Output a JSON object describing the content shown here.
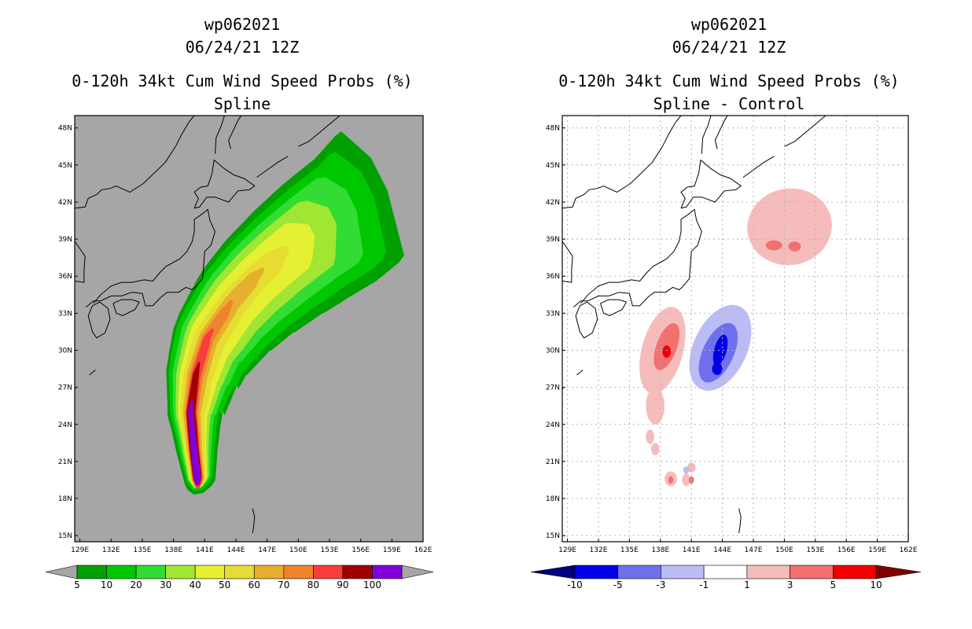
{
  "chart_data": [
    {
      "type": "heatmap",
      "id": "left",
      "title": {
        "storm": "wp062021",
        "datetime": "06/24/21 12Z",
        "product": "0-120h 34kt Cum Wind Speed Probs (%)",
        "subtitle": "Spline"
      },
      "xlabel": "",
      "ylabel": "",
      "xlim": [
        128.5,
        162
      ],
      "ylim": [
        14.5,
        49
      ],
      "grid": false,
      "x_ticks": [
        129,
        132,
        135,
        138,
        141,
        144,
        147,
        150,
        153,
        156,
        159,
        162
      ],
      "x_tick_labels": [
        "129E",
        "132E",
        "135E",
        "138E",
        "141E",
        "144E",
        "147E",
        "150E",
        "153E",
        "156E",
        "159E",
        "162E"
      ],
      "y_ticks": [
        15,
        18,
        21,
        24,
        27,
        30,
        33,
        36,
        39,
        42,
        45,
        48
      ],
      "y_tick_labels": [
        "15N",
        "18N",
        "21N",
        "24N",
        "27N",
        "30N",
        "33N",
        "36N",
        "39N",
        "42N",
        "45N",
        "48N"
      ],
      "background": "#a6a6a6",
      "colorbar": {
        "labels": [
          "5",
          "10",
          "20",
          "30",
          "40",
          "50",
          "60",
          "70",
          "80",
          "90",
          "100"
        ],
        "colors": [
          "#00a000",
          "#00c800",
          "#32dc32",
          "#a0e632",
          "#e6f032",
          "#e6dc32",
          "#e6af2d",
          "#f0822d",
          "#fa3c3c",
          "#a00000",
          "#8200dc"
        ],
        "end_low": "#a6a6a6",
        "end_high": "#a6a6a6"
      },
      "levels": [
        {
          "value": 5,
          "color": "#00a000",
          "half_width": [
            [
              5.0,
              1.2
            ],
            [
              3.0,
              2.2
            ],
            [
              0.8,
              3.5
            ],
            [
              -0.5,
              4.4
            ],
            [
              -1.3,
              5.2
            ],
            [
              -1.8,
              5.8
            ]
          ]
        },
        {
          "value": 10,
          "color": "#00c800",
          "half_width": [
            [
              4.2,
              1.0
            ],
            [
              2.3,
              1.9
            ],
            [
              0.2,
              3.2
            ],
            [
              -1.2,
              3.9
            ],
            [
              -2.0,
              4.4
            ],
            [
              -2.5,
              4.8
            ]
          ]
        },
        {
          "value": 20,
          "color": "#32dc32",
          "half_width": [
            [
              3.4,
              0.9
            ],
            [
              1.6,
              1.6
            ],
            [
              -0.4,
              2.6
            ],
            [
              -1.9,
              3.2
            ],
            [
              -2.6,
              3.6
            ],
            [
              -3.5,
              3.8
            ]
          ]
        },
        {
          "value": 30,
          "color": "#a0e632",
          "half_width": [
            [
              2.8,
              0.8
            ],
            [
              1.1,
              1.3
            ],
            [
              -0.9,
              2.1
            ],
            [
              -2.4,
              2.6
            ],
            [
              -3.2,
              2.8
            ],
            [
              -4.5,
              2.9
            ]
          ]
        },
        {
          "value": 40,
          "color": "#e6f032",
          "half_width": [
            [
              2.3,
              0.7
            ],
            [
              0.6,
              1.05
            ],
            [
              -1.4,
              1.65
            ],
            [
              -2.9,
              2.0
            ],
            [
              -3.6,
              2.0
            ],
            [
              -5.0,
              2.0
            ]
          ]
        },
        {
          "value": 50,
          "color": "#e6dc32",
          "half_width": [
            [
              1.9,
              0.6
            ],
            [
              0.2,
              0.9
            ],
            [
              -1.9,
              1.25
            ],
            [
              -3.5,
              1.4
            ],
            [
              -4.4,
              1.2
            ],
            [
              -5.6,
              0.8
            ]
          ]
        },
        {
          "value": 60,
          "color": "#e6af2d",
          "half_width": [
            [
              1.5,
              0.5
            ],
            [
              -0.3,
              0.7
            ],
            [
              -2.5,
              0.9
            ],
            [
              -4.3,
              0.8
            ],
            [
              -5.2,
              0.5
            ]
          ]
        },
        {
          "value": 70,
          "color": "#f0822d",
          "half_width": [
            [
              1.2,
              0.45
            ],
            [
              -0.6,
              0.55
            ],
            [
              -3.0,
              0.6
            ],
            [
              -5.0,
              0.35
            ]
          ]
        },
        {
          "value": 80,
          "color": "#fa3c3c",
          "half_width": [
            [
              0.9,
              0.4
            ],
            [
              -1.0,
              0.45
            ],
            [
              -4.0,
              0.3
            ]
          ]
        },
        {
          "value": 90,
          "color": "#a00000",
          "half_width": [
            [
              0.7,
              0.35
            ],
            [
              -1.8,
              0.4
            ],
            [
              -4.8,
              0.2
            ]
          ]
        },
        {
          "value": 100,
          "color": "#8200dc",
          "half_width": [
            [
              0.5,
              0.3
            ],
            [
              -2.5,
              0.25
            ],
            [
              -5.6,
              0.15
            ]
          ]
        }
      ]
    },
    {
      "type": "heatmap",
      "id": "right",
      "title": {
        "storm": "wp062021",
        "datetime": "06/24/21 12Z",
        "product": "0-120h 34kt Cum Wind Speed Probs (%)",
        "subtitle": "Spline - Control"
      },
      "xlabel": "",
      "ylabel": "",
      "xlim": [
        128.5,
        162
      ],
      "ylim": [
        14.5,
        49
      ],
      "grid": true,
      "x_ticks": [
        129,
        132,
        135,
        138,
        141,
        144,
        147,
        150,
        153,
        156,
        159,
        162
      ],
      "x_tick_labels": [
        "129E",
        "132E",
        "135E",
        "138E",
        "141E",
        "144E",
        "147E",
        "150E",
        "153E",
        "156E",
        "159E",
        "162E"
      ],
      "y_ticks": [
        15,
        18,
        21,
        24,
        27,
        30,
        33,
        36,
        39,
        42,
        45,
        48
      ],
      "y_tick_labels": [
        "15N",
        "18N",
        "21N",
        "24N",
        "27N",
        "30N",
        "33N",
        "36N",
        "39N",
        "42N",
        "45N",
        "48N"
      ],
      "background": "#ffffff",
      "colorbar": {
        "labels": [
          "-10",
          "-5",
          "-3",
          "-1",
          "1",
          "3",
          "5",
          "10"
        ],
        "colors": [
          "#0000e6",
          "#7070ee",
          "#bcbcf5",
          "#ffffff",
          "#f6bcbc",
          "#f27070",
          "#f00000"
        ],
        "end_low": "#000080",
        "end_high": "#800000"
      },
      "anomalies": [
        {
          "lon": 150.5,
          "lat": 40.0,
          "rx": 4.1,
          "ry": 3.1,
          "rot": -10,
          "value": 2,
          "color": "#f6bcbc"
        },
        {
          "lon": 138.2,
          "lat": 30.0,
          "rx": 2.0,
          "ry": 3.6,
          "rot": 15,
          "value": 2,
          "color": "#f6bcbc"
        },
        {
          "lon": 137.5,
          "lat": 25.5,
          "rx": 0.9,
          "ry": 1.5,
          "rot": 0,
          "value": 2,
          "color": "#f6bcbc"
        },
        {
          "lon": 137.0,
          "lat": 23.0,
          "rx": 0.4,
          "ry": 0.6,
          "rot": 0,
          "value": 2,
          "color": "#f6bcbc"
        },
        {
          "lon": 139.0,
          "lat": 19.6,
          "rx": 0.6,
          "ry": 0.6,
          "rot": 0,
          "value": 2,
          "color": "#f6bcbc"
        },
        {
          "lon": 140.5,
          "lat": 19.5,
          "rx": 0.4,
          "ry": 0.5,
          "rot": 0,
          "value": 2,
          "color": "#f6bcbc"
        },
        {
          "lon": 141.0,
          "lat": 20.5,
          "rx": 0.4,
          "ry": 0.4,
          "rot": 0,
          "value": 2,
          "color": "#f6bcbc"
        },
        {
          "lon": 137.5,
          "lat": 22.0,
          "rx": 0.4,
          "ry": 0.5,
          "rot": 0,
          "value": 2,
          "color": "#f6bcbc"
        },
        {
          "lon": 149.0,
          "lat": 38.5,
          "rx": 0.8,
          "ry": 0.4,
          "rot": 0,
          "value": 4,
          "color": "#f27070"
        },
        {
          "lon": 151.0,
          "lat": 38.4,
          "rx": 0.6,
          "ry": 0.4,
          "rot": 0,
          "value": 4,
          "color": "#f27070"
        },
        {
          "lon": 138.6,
          "lat": 30.3,
          "rx": 1.0,
          "ry": 2.0,
          "rot": 20,
          "value": 4,
          "color": "#f27070"
        },
        {
          "lon": 138.6,
          "lat": 29.9,
          "rx": 0.4,
          "ry": 0.5,
          "rot": 0,
          "value": 7,
          "color": "#f00000"
        },
        {
          "lon": 139.0,
          "lat": 19.5,
          "rx": 0.25,
          "ry": 0.3,
          "rot": 0,
          "value": 4,
          "color": "#f27070"
        },
        {
          "lon": 141.0,
          "lat": 19.5,
          "rx": 0.25,
          "ry": 0.3,
          "rot": 0,
          "value": 4,
          "color": "#f27070"
        },
        {
          "lon": 143.8,
          "lat": 30.2,
          "rx": 2.6,
          "ry": 3.7,
          "rot": 25,
          "value": -2,
          "color": "#bcbcf5"
        },
        {
          "lon": 143.6,
          "lat": 29.8,
          "rx": 1.5,
          "ry": 2.6,
          "rot": 25,
          "value": -4,
          "color": "#7070ee"
        },
        {
          "lon": 143.8,
          "lat": 30.0,
          "rx": 0.6,
          "ry": 1.3,
          "rot": 15,
          "value": -7,
          "color": "#0000e6"
        },
        {
          "lon": 143.5,
          "lat": 28.5,
          "rx": 0.5,
          "ry": 0.5,
          "rot": 0,
          "value": -7,
          "color": "#0000e6"
        },
        {
          "lon": 146.0,
          "lat": 33.0,
          "rx": 0.3,
          "ry": 0.3,
          "rot": 0,
          "value": -2,
          "color": "#bcbcf5"
        },
        {
          "lon": 140.5,
          "lat": 20.3,
          "rx": 0.3,
          "ry": 0.3,
          "rot": 0,
          "value": -2,
          "color": "#bcbcf5"
        }
      ]
    }
  ],
  "coastline": [
    [
      [
        129.6,
        33.5
      ],
      [
        130.3,
        34.0
      ],
      [
        131.0,
        34.0
      ],
      [
        132.0,
        34.4
      ],
      [
        133.0,
        34.4
      ],
      [
        134.0,
        34.7
      ],
      [
        135.0,
        34.6
      ],
      [
        135.3,
        33.6
      ],
      [
        136.0,
        33.6
      ],
      [
        136.8,
        34.3
      ],
      [
        137.4,
        34.7
      ],
      [
        138.5,
        34.7
      ],
      [
        139.2,
        35.1
      ],
      [
        139.8,
        34.9
      ],
      [
        140.1,
        35.1
      ],
      [
        140.8,
        35.8
      ],
      [
        140.9,
        36.9
      ],
      [
        141.0,
        38.0
      ],
      [
        141.6,
        38.5
      ],
      [
        142.0,
        39.6
      ],
      [
        141.5,
        40.5
      ],
      [
        141.3,
        41.4
      ],
      [
        140.7,
        41.0
      ],
      [
        140.0,
        40.6
      ],
      [
        140.0,
        39.6
      ],
      [
        139.8,
        38.8
      ],
      [
        139.3,
        38.0
      ],
      [
        138.6,
        37.4
      ],
      [
        137.3,
        36.8
      ],
      [
        136.7,
        36.3
      ],
      [
        136.0,
        35.6
      ],
      [
        135.2,
        35.7
      ],
      [
        134.0,
        35.5
      ],
      [
        133.0,
        35.5
      ],
      [
        132.0,
        35.2
      ],
      [
        131.0,
        34.5
      ],
      [
        130.3,
        33.8
      ]
    ],
    [
      [
        130.2,
        33.6
      ],
      [
        130.9,
        33.9
      ],
      [
        131.7,
        33.4
      ],
      [
        131.9,
        32.5
      ],
      [
        131.4,
        31.4
      ],
      [
        130.6,
        31.0
      ],
      [
        130.2,
        31.5
      ],
      [
        129.8,
        32.8
      ],
      [
        130.2,
        33.6
      ]
    ],
    [
      [
        132.2,
        33.8
      ],
      [
        133.0,
        34.1
      ],
      [
        134.0,
        34.1
      ],
      [
        134.7,
        33.9
      ],
      [
        134.3,
        33.3
      ],
      [
        133.1,
        32.8
      ],
      [
        132.5,
        33.0
      ],
      [
        132.2,
        33.8
      ]
    ],
    [
      [
        140.0,
        41.5
      ],
      [
        140.4,
        42.3
      ],
      [
        140.0,
        42.8
      ],
      [
        140.6,
        43.2
      ],
      [
        141.3,
        43.3
      ],
      [
        141.7,
        44.3
      ],
      [
        141.9,
        45.4
      ],
      [
        142.9,
        44.7
      ],
      [
        143.8,
        44.2
      ],
      [
        144.8,
        43.9
      ],
      [
        145.3,
        43.6
      ],
      [
        145.8,
        43.3
      ],
      [
        145.3,
        43.0
      ],
      [
        144.2,
        42.9
      ],
      [
        143.3,
        42.0
      ],
      [
        142.0,
        42.4
      ],
      [
        141.2,
        42.4
      ],
      [
        140.5,
        41.6
      ],
      [
        140.0,
        41.5
      ]
    ],
    [
      [
        142.0,
        45.9
      ],
      [
        142.1,
        47.2
      ],
      [
        142.6,
        48.2
      ],
      [
        142.9,
        49.0
      ]
    ],
    [
      [
        144.5,
        49.0
      ],
      [
        144.2,
        48.6
      ],
      [
        143.3,
        47.0
      ],
      [
        143.5,
        46.3
      ]
    ],
    [
      [
        128.5,
        35.6
      ],
      [
        129.4,
        35.5
      ],
      [
        129.4,
        36.5
      ],
      [
        129.5,
        37.6
      ],
      [
        128.7,
        38.6
      ],
      [
        128.5,
        38.8
      ]
    ],
    [
      [
        128.5,
        41.5
      ],
      [
        129.5,
        41.6
      ],
      [
        129.8,
        42.3
      ],
      [
        130.6,
        42.6
      ],
      [
        131.1,
        43.0
      ],
      [
        131.9,
        43.1
      ],
      [
        132.5,
        43.3
      ],
      [
        133.8,
        42.8
      ],
      [
        135.1,
        43.5
      ],
      [
        137.2,
        45.2
      ],
      [
        138.2,
        46.5
      ],
      [
        138.8,
        47.5
      ],
      [
        139.5,
        48.5
      ],
      [
        140.0,
        49.0
      ]
    ],
    [
      [
        150.0,
        46.5
      ],
      [
        151.0,
        46.9
      ],
      [
        152.0,
        47.6
      ],
      [
        153.0,
        48.3
      ],
      [
        154.0,
        49.0
      ]
    ],
    [
      [
        146.0,
        44.0
      ],
      [
        147.0,
        44.6
      ],
      [
        148.0,
        45.2
      ],
      [
        149.0,
        45.7
      ]
    ],
    [
      [
        130.5,
        28.4
      ],
      [
        129.9,
        28.0
      ]
    ],
    [
      [
        128.6,
        26.9
      ],
      [
        128.0,
        26.5
      ]
    ],
    [
      [
        145.6,
        17.2
      ],
      [
        145.8,
        16.5
      ],
      [
        145.7,
        15.7
      ],
      [
        145.6,
        15.2
      ]
    ],
    [
      [
        144.7,
        13.5
      ],
      [
        144.9,
        14.5
      ]
    ]
  ]
}
